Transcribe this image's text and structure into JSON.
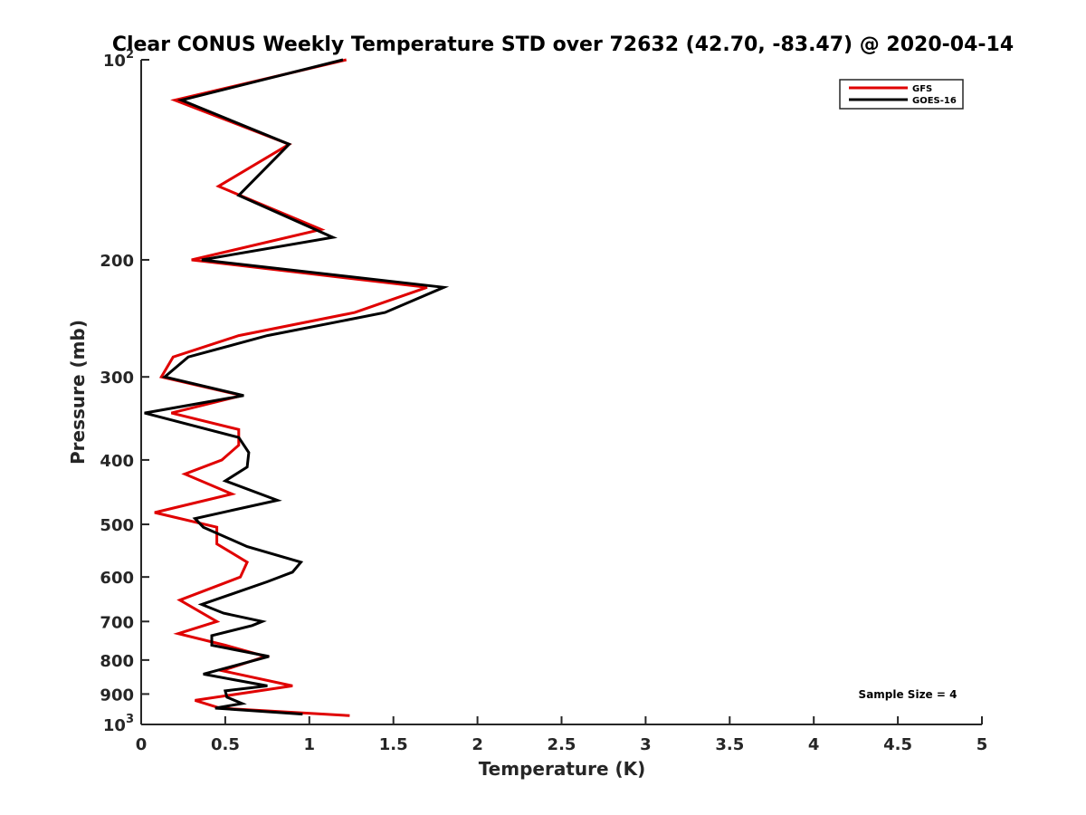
{
  "chart_data": {
    "type": "line",
    "title": "Clear CONUS Weekly Temperature STD over 72632 (42.70, -83.47) @ 2020-04-14",
    "xlabel": "Temperature (K)",
    "ylabel": "Pressure (mb)",
    "xlim": [
      0,
      5
    ],
    "ylim": [
      100,
      1000
    ],
    "y_scale": "log",
    "y_reversed": true,
    "x_ticks": [
      "0",
      "0.5",
      "1",
      "1.5",
      "2",
      "2.5",
      "3",
      "3.5",
      "4",
      "4.5",
      "5"
    ],
    "y_ticks": [
      {
        "value": 100,
        "label": "10",
        "sup": "2"
      },
      {
        "value": 200,
        "label": "200",
        "sup": ""
      },
      {
        "value": 300,
        "label": "300",
        "sup": ""
      },
      {
        "value": 400,
        "label": "400",
        "sup": ""
      },
      {
        "value": 500,
        "label": "500",
        "sup": ""
      },
      {
        "value": 600,
        "label": "600",
        "sup": ""
      },
      {
        "value": 700,
        "label": "700",
        "sup": ""
      },
      {
        "value": 800,
        "label": "800",
        "sup": ""
      },
      {
        "value": 900,
        "label": "900",
        "sup": ""
      },
      {
        "value": 1000,
        "label": "10",
        "sup": "3"
      }
    ],
    "legend_position": "top-right",
    "grid": false,
    "series": [
      {
        "name": "GFS",
        "color": "#e00000",
        "points": [
          [
            1.22,
            100
          ],
          [
            0.2,
            115
          ],
          [
            0.88,
            134
          ],
          [
            0.46,
            155
          ],
          [
            1.07,
            180
          ],
          [
            0.3,
            200
          ],
          [
            1.7,
            220
          ],
          [
            1.27,
            240
          ],
          [
            0.58,
            260
          ],
          [
            0.19,
            280
          ],
          [
            0.12,
            300
          ],
          [
            0.6,
            320
          ],
          [
            0.18,
            340
          ],
          [
            0.58,
            360
          ],
          [
            0.58,
            380
          ],
          [
            0.48,
            400
          ],
          [
            0.26,
            420
          ],
          [
            0.54,
            450
          ],
          [
            0.08,
            480
          ],
          [
            0.45,
            505
          ],
          [
            0.45,
            535
          ],
          [
            0.63,
            570
          ],
          [
            0.59,
            600
          ],
          [
            0.23,
            650
          ],
          [
            0.45,
            700
          ],
          [
            0.22,
            730
          ],
          [
            0.5,
            760
          ],
          [
            0.74,
            790
          ],
          [
            0.48,
            830
          ],
          [
            0.9,
            875
          ],
          [
            0.32,
            920
          ],
          [
            0.47,
            945
          ],
          [
            1.24,
            970
          ]
        ]
      },
      {
        "name": "GOES-16",
        "color": "#000000",
        "points": [
          [
            1.2,
            100
          ],
          [
            0.24,
            115
          ],
          [
            0.88,
            134
          ],
          [
            0.58,
            160
          ],
          [
            1.14,
            185
          ],
          [
            0.36,
            200
          ],
          [
            1.8,
            220
          ],
          [
            1.45,
            240
          ],
          [
            0.75,
            260
          ],
          [
            0.28,
            280
          ],
          [
            0.14,
            300
          ],
          [
            0.61,
            320
          ],
          [
            0.02,
            340
          ],
          [
            0.58,
            370
          ],
          [
            0.64,
            390
          ],
          [
            0.63,
            410
          ],
          [
            0.5,
            430
          ],
          [
            0.81,
            460
          ],
          [
            0.32,
            490
          ],
          [
            0.37,
            505
          ],
          [
            0.63,
            540
          ],
          [
            0.95,
            570
          ],
          [
            0.9,
            590
          ],
          [
            0.75,
            610
          ],
          [
            0.36,
            660
          ],
          [
            0.49,
            680
          ],
          [
            0.72,
            700
          ],
          [
            0.66,
            710
          ],
          [
            0.42,
            735
          ],
          [
            0.42,
            760
          ],
          [
            0.76,
            790
          ],
          [
            0.37,
            840
          ],
          [
            0.75,
            875
          ],
          [
            0.5,
            890
          ],
          [
            0.51,
            910
          ],
          [
            0.6,
            930
          ],
          [
            0.44,
            945
          ],
          [
            0.96,
            965
          ]
        ]
      }
    ],
    "annotation": "Sample Size = 4"
  }
}
